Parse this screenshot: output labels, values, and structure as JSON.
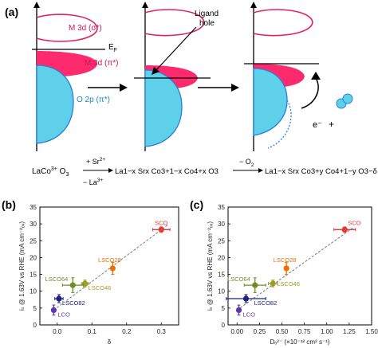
{
  "colors": {
    "d_sigma": "#e0235e",
    "d_pi": "#ff2a6d",
    "o2p": "#5fd0ea",
    "o2p_stroke": "#2a7fd6",
    "arrow_black": "#000000",
    "bubble": "#5fd0ea"
  },
  "panel_a": {
    "label": "(a)",
    "m3d_sigma": "M 3d (σ*)",
    "ef": "E",
    "ef_sub": "F",
    "m3d_pi": "M 3d (π*)",
    "o2p": "O 2p (π*)",
    "ligand_hole": "Ligand",
    "ligand_hole2": "hole",
    "electron": "e⁻",
    "plus": "+",
    "reaction": {
      "reactant_a": "LaCo",
      "reactant_sup": "3+",
      "reactant_b": " O",
      "reactant_sub": "3",
      "arrow1_top": "+ Sr",
      "arrow1_top_sup": "2+",
      "arrow1_bottom": "− La",
      "arrow1_bottom_sup": "3+",
      "mid": "La1−x Srx Co3+1−x Co4+x O3",
      "arrow2_top": "− O",
      "arrow2_top_sub": "2",
      "product": "La1−x Srx Co3+y Co4+1−y O3−δ"
    }
  },
  "panel_b": {
    "label": "(b)",
    "ylabel": "iₛ @ 1.63V vs RHE (mA cm⁻²ₒₓ)",
    "xlabel": "δ",
    "xticks": [
      "0.0",
      "0.1",
      "0.2",
      "0.3"
    ],
    "yticks": [
      "0",
      "5",
      "10",
      "15",
      "20",
      "25",
      "30",
      "35"
    ]
  },
  "panel_c": {
    "label": "(c)",
    "ylabel": "iₛ @ 1.63V vs RHE (mA cm⁻²ₒₓ)",
    "xlabel": "Dₒ²⁻ (×10⁻¹² cm² s⁻¹)",
    "xticks": [
      "0.00",
      "0.25",
      "0.50",
      "0.75",
      "1.00",
      "1.25",
      "1.50"
    ],
    "yticks": [
      "0",
      "5",
      "10",
      "15",
      "20",
      "25",
      "30",
      "35"
    ]
  },
  "chart_data": [
    {
      "type": "scatter",
      "panel": "(b)",
      "xlabel": "δ",
      "ylabel": "iₛ @ 1.63V vs RHE (mA cm⁻²ₒₓ)",
      "xlim": [
        -0.05,
        0.35
      ],
      "ylim": [
        0,
        35
      ],
      "grid": false,
      "points": [
        {
          "label": "SCO",
          "x": 0.3,
          "y": 28.3,
          "xerr": 0.025,
          "yerr": 0.8,
          "color": "#e53935"
        },
        {
          "label": "LSCO28",
          "x": 0.16,
          "y": 16.8,
          "xerr": 0.0,
          "yerr": 1.8,
          "color": "#ef6c00"
        },
        {
          "label": "LSCO46",
          "x": 0.08,
          "y": 12.3,
          "xerr": 0.01,
          "yerr": 1.0,
          "color": "#9e9d24"
        },
        {
          "label": "LSCO64",
          "x": 0.045,
          "y": 11.8,
          "xerr": 0.03,
          "yerr": 2.2,
          "color": "#6b8e23"
        },
        {
          "label": "LSCO82",
          "x": 0.005,
          "y": 7.8,
          "xerr": 0.012,
          "yerr": 1.2,
          "color": "#1a237e"
        },
        {
          "label": "LCO",
          "x": -0.01,
          "y": 4.4,
          "xerr": 0.005,
          "yerr": 1.5,
          "color": "#5e35b1"
        }
      ],
      "trendline": {
        "x": [
          -0.01,
          0.32
        ],
        "y": [
          4.4,
          29.8
        ],
        "style": "dashed"
      }
    },
    {
      "type": "scatter",
      "panel": "(c)",
      "xlabel": "Dₒ²⁻ (×10⁻¹² cm² s⁻¹)",
      "ylabel": "iₛ @ 1.63V vs RHE (mA cm⁻²ₒₓ)",
      "xlim": [
        -0.1,
        1.5
      ],
      "ylim": [
        0,
        35
      ],
      "grid": false,
      "points": [
        {
          "label": "SCO",
          "x": 1.2,
          "y": 28.3,
          "xerr": 0.12,
          "yerr": 0.8,
          "color": "#e53935"
        },
        {
          "label": "LSCO28",
          "x": 0.55,
          "y": 16.8,
          "xerr": 0.0,
          "yerr": 1.8,
          "color": "#ef6c00"
        },
        {
          "label": "LSCO46",
          "x": 0.4,
          "y": 12.3,
          "xerr": 0.05,
          "yerr": 1.0,
          "color": "#9e9d24"
        },
        {
          "label": "LSCO64",
          "x": 0.2,
          "y": 11.8,
          "xerr": 0.12,
          "yerr": 2.2,
          "color": "#6b8e23"
        },
        {
          "label": "LSCO82",
          "x": 0.1,
          "y": 7.8,
          "xerr": 0.22,
          "yerr": 1.2,
          "color": "#1a237e"
        },
        {
          "label": "LCO",
          "x": 0.02,
          "y": 4.4,
          "xerr": 0.02,
          "yerr": 1.5,
          "color": "#5e35b1"
        }
      ],
      "trendline": {
        "x": [
          0.0,
          1.3
        ],
        "y": [
          4.4,
          29.0
        ],
        "style": "dashed"
      }
    }
  ]
}
